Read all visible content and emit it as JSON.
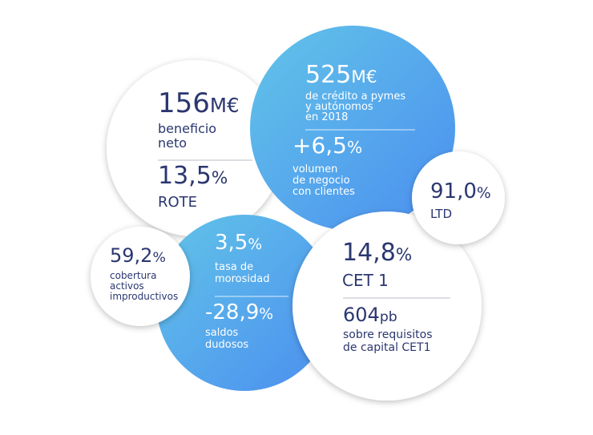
{
  "bubbles": [
    {
      "items": [
        {
          "value": "156",
          "unit": "M€",
          "label": [
            "beneficio",
            "neto"
          ]
        },
        {
          "value": "13,5",
          "unit": "%",
          "label": [
            "ROTE"
          ]
        }
      ]
    },
    {
      "items": [
        {
          "value": "525",
          "unit": "M€",
          "label": [
            "de crédito a pymes",
            "y autónomos",
            "en 2018"
          ]
        },
        {
          "value": "+6,5",
          "unit": "%",
          "label": [
            "volumen",
            "de negocio",
            "con clientes"
          ]
        }
      ]
    },
    {
      "items": [
        {
          "value": "3,5",
          "unit": "%",
          "label": [
            "tasa de",
            "morosidad"
          ]
        },
        {
          "value": "-28,9",
          "unit": "%",
          "label": [
            "saldos",
            "dudosos"
          ]
        }
      ]
    },
    {
      "items": [
        {
          "value": "14,8",
          "unit": "%",
          "label": [
            "CET 1"
          ]
        },
        {
          "value": "604",
          "unit": "pb",
          "label": [
            "sobre requisitos",
            "de capital CET1"
          ]
        }
      ]
    },
    {
      "items": [
        {
          "value": "91,0",
          "unit": "%",
          "label": [
            "LTD"
          ]
        }
      ]
    },
    {
      "items": [
        {
          "value": "59,2",
          "unit": "%",
          "label": [
            "cobertura",
            "activos",
            "improductivos"
          ]
        }
      ]
    }
  ]
}
